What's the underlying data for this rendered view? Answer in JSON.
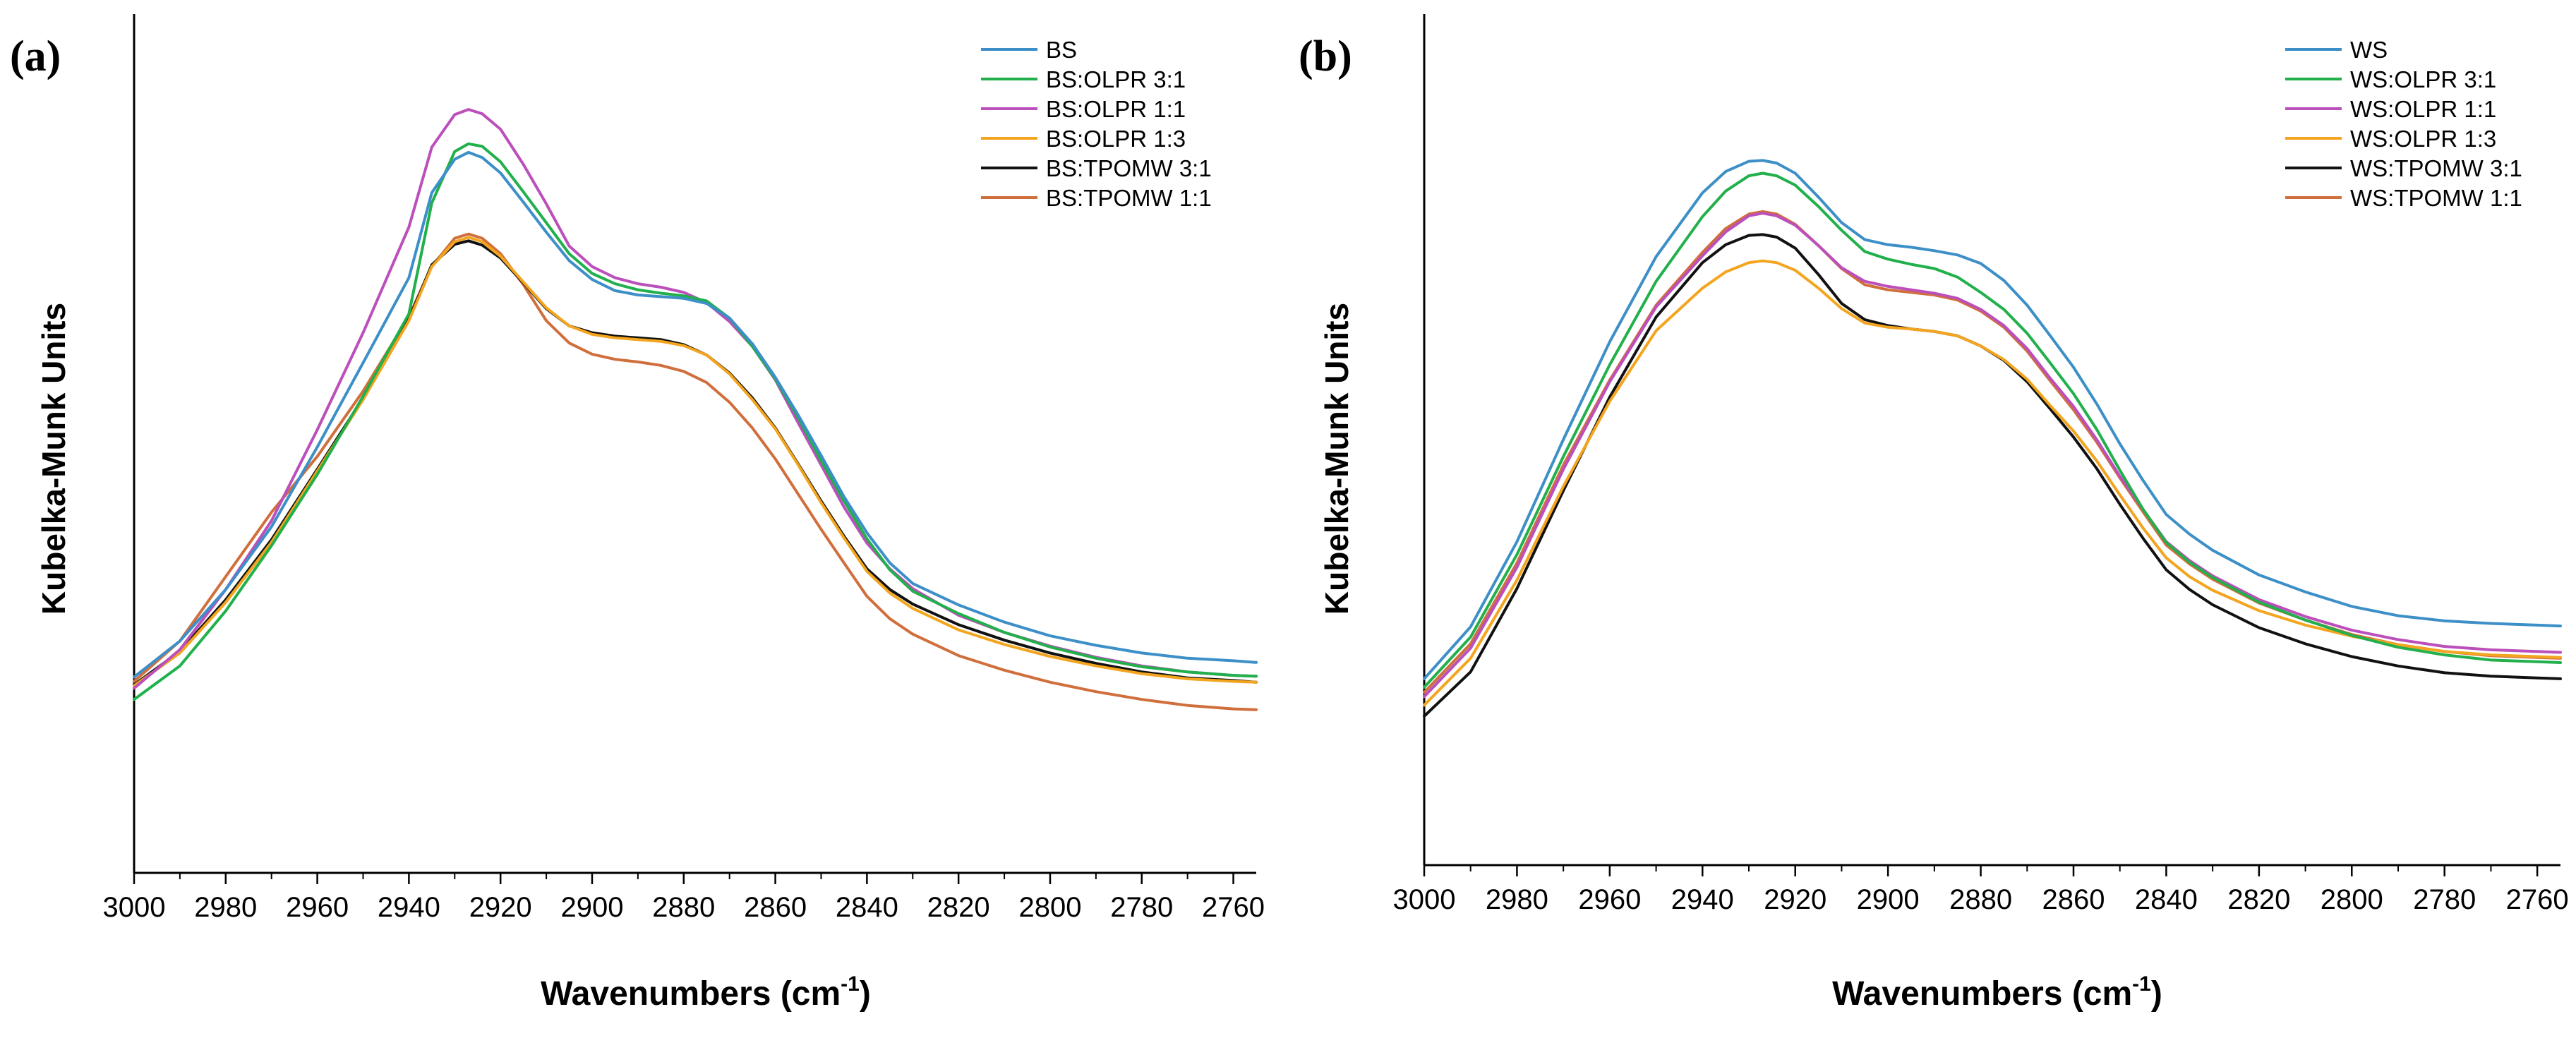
{
  "chart_data": [
    {
      "type": "line",
      "panel_label": "(a)",
      "xlabel": "Wavenumbers (cm",
      "xlabel_sup": "-1",
      "xlabel_tail": ")",
      "ylabel": "Kubelka-Munk Units",
      "xlim": [
        3000,
        2755
      ],
      "ylim": [
        0,
        100
      ],
      "x_ticks": [
        3000,
        2980,
        2960,
        2940,
        2920,
        2900,
        2880,
        2860,
        2840,
        2820,
        2800,
        2780,
        2760
      ],
      "y_ticks_labeled": false,
      "grid": false,
      "legend_position": "top-right",
      "x": [
        3000,
        2990,
        2980,
        2970,
        2960,
        2950,
        2940,
        2935,
        2930,
        2927,
        2924,
        2920,
        2915,
        2910,
        2905,
        2900,
        2895,
        2890,
        2885,
        2880,
        2875,
        2870,
        2865,
        2860,
        2855,
        2850,
        2845,
        2840,
        2835,
        2830,
        2820,
        2810,
        2800,
        2790,
        2780,
        2770,
        2760,
        2755
      ],
      "series": [
        {
          "name": "BS",
          "color": "#3d8fc8",
          "values": [
            22.8,
            27.0,
            33.0,
            40.3,
            49.6,
            59.4,
            69.3,
            79.2,
            83.1,
            83.9,
            83.3,
            81.5,
            78.1,
            74.6,
            71.3,
            69.1,
            67.8,
            67.3,
            67.1,
            66.9,
            66.3,
            64.6,
            61.6,
            57.7,
            53.3,
            48.6,
            43.8,
            39.6,
            36.1,
            33.7,
            31.2,
            29.2,
            27.6,
            26.5,
            25.6,
            25.0,
            24.7,
            24.5
          ]
        },
        {
          "name": "BS:OLPR 3:1",
          "color": "#21b04b",
          "values": [
            20.2,
            24.1,
            30.5,
            38.1,
            46.4,
            55.5,
            65.1,
            78.0,
            84.0,
            84.9,
            84.6,
            82.8,
            79.3,
            75.7,
            72.1,
            69.8,
            68.6,
            67.9,
            67.5,
            67.2,
            66.6,
            64.6,
            61.3,
            57.5,
            53.0,
            48.0,
            43.3,
            38.9,
            35.3,
            32.8,
            30.2,
            28.0,
            26.3,
            25.0,
            24.0,
            23.4,
            23.0,
            22.9
          ]
        },
        {
          "name": "BS:OLPR 1:1",
          "color": "#bb4fbb",
          "values": [
            21.5,
            26.0,
            33.0,
            41.0,
            51.6,
            62.9,
            75.2,
            84.5,
            88.3,
            88.9,
            88.4,
            86.6,
            82.5,
            77.9,
            73.0,
            70.6,
            69.3,
            68.6,
            68.2,
            67.6,
            66.4,
            64.2,
            61.3,
            57.4,
            52.4,
            47.5,
            42.6,
            38.4,
            35.4,
            33.1,
            30.0,
            28.0,
            26.4,
            25.1,
            24.1,
            23.4,
            23.0,
            22.9
          ]
        },
        {
          "name": "BS:OLPR 1:3",
          "color": "#f3a51f",
          "values": [
            21.8,
            25.6,
            31.5,
            38.5,
            46.8,
            55.1,
            64.3,
            70.6,
            73.5,
            74.0,
            73.5,
            71.8,
            68.8,
            65.8,
            63.7,
            62.7,
            62.3,
            62.1,
            61.9,
            61.4,
            60.3,
            58.1,
            55.1,
            51.7,
            47.5,
            43.1,
            39.0,
            35.1,
            32.6,
            30.8,
            28.3,
            26.6,
            25.2,
            24.1,
            23.2,
            22.6,
            22.3,
            22.2
          ]
        },
        {
          "name": "BS:TPOMW 3:1",
          "color": "#111111",
          "values": [
            21.9,
            25.8,
            31.8,
            38.8,
            47.0,
            55.3,
            64.5,
            70.8,
            73.2,
            73.6,
            73.1,
            71.6,
            68.7,
            65.7,
            63.7,
            62.9,
            62.5,
            62.3,
            62.1,
            61.5,
            60.3,
            58.2,
            55.3,
            51.8,
            47.6,
            43.3,
            39.2,
            35.4,
            33.0,
            31.3,
            28.9,
            27.1,
            25.6,
            24.4,
            23.4,
            22.7,
            22.4,
            22.2
          ]
        },
        {
          "name": "BS:TPOMW 1:1",
          "color": "#d06f3c",
          "values": [
            22.3,
            27.0,
            34.5,
            42.0,
            48.5,
            56.1,
            64.8,
            70.6,
            73.9,
            74.4,
            73.9,
            72.1,
            68.5,
            64.3,
            61.7,
            60.4,
            59.8,
            59.5,
            59.1,
            58.4,
            57.1,
            54.8,
            51.8,
            48.2,
            44.1,
            40.0,
            36.1,
            32.2,
            29.6,
            27.8,
            25.3,
            23.6,
            22.2,
            21.1,
            20.2,
            19.5,
            19.1,
            19.0
          ]
        }
      ]
    },
    {
      "type": "line",
      "panel_label": "(b)",
      "xlabel": "Wavenumbers (cm",
      "xlabel_sup": "-1",
      "xlabel_tail": ")",
      "ylabel": "Kubelka-Munk Units",
      "xlim": [
        3000,
        2755
      ],
      "ylim": [
        0,
        100
      ],
      "x_ticks": [
        3000,
        2980,
        2960,
        2940,
        2920,
        2900,
        2880,
        2860,
        2840,
        2820,
        2800,
        2780,
        2760
      ],
      "y_ticks_labeled": false,
      "grid": false,
      "legend_position": "top-right",
      "x": [
        3000,
        2990,
        2980,
        2970,
        2960,
        2950,
        2940,
        2935,
        2930,
        2927,
        2924,
        2920,
        2915,
        2910,
        2905,
        2900,
        2895,
        2890,
        2885,
        2880,
        2875,
        2870,
        2865,
        2860,
        2855,
        2850,
        2845,
        2840,
        2835,
        2830,
        2820,
        2810,
        2800,
        2790,
        2780,
        2770,
        2760,
        2755
      ],
      "series": [
        {
          "name": "WS",
          "color": "#3d8fc8",
          "values": [
            21.9,
            28.0,
            38.0,
            50.0,
            61.5,
            71.5,
            79.0,
            81.5,
            82.7,
            82.8,
            82.5,
            81.3,
            78.5,
            75.5,
            73.5,
            72.9,
            72.6,
            72.2,
            71.7,
            70.7,
            68.7,
            65.8,
            62.2,
            58.5,
            54.2,
            49.5,
            45.2,
            41.2,
            38.9,
            37.0,
            34.1,
            32.1,
            30.4,
            29.3,
            28.7,
            28.4,
            28.2,
            28.1
          ]
        },
        {
          "name": "WS:OLPR 3:1",
          "color": "#21b04b",
          "values": [
            20.9,
            26.8,
            36.5,
            48.0,
            58.8,
            68.6,
            76.2,
            79.2,
            81.0,
            81.3,
            81.0,
            79.9,
            77.4,
            74.6,
            72.1,
            71.2,
            70.6,
            70.1,
            69.1,
            67.3,
            65.3,
            62.5,
            59.0,
            55.4,
            51.2,
            46.4,
            41.8,
            37.9,
            35.6,
            33.8,
            30.9,
            28.8,
            27.0,
            25.6,
            24.7,
            24.1,
            23.9,
            23.8
          ]
        },
        {
          "name": "WS:OLPR 1:1",
          "color": "#bb4fbb",
          "values": [
            19.8,
            25.5,
            35.0,
            46.5,
            56.8,
            65.6,
            71.6,
            74.4,
            76.3,
            76.6,
            76.3,
            75.2,
            72.8,
            70.2,
            68.6,
            68.0,
            67.6,
            67.2,
            66.6,
            65.3,
            63.4,
            60.7,
            57.2,
            53.9,
            50.0,
            45.7,
            41.8,
            38.0,
            35.8,
            34.0,
            31.2,
            29.2,
            27.6,
            26.5,
            25.7,
            25.3,
            25.1,
            25.0
          ]
        },
        {
          "name": "WS:OLPR 1:3",
          "color": "#f3a51f",
          "values": [
            18.8,
            24.3,
            33.5,
            44.5,
            54.5,
            62.8,
            67.8,
            69.7,
            70.8,
            71.0,
            70.8,
            69.9,
            67.8,
            65.4,
            63.7,
            63.2,
            63.0,
            62.7,
            62.2,
            61.0,
            59.4,
            57.1,
            54.0,
            51.0,
            47.5,
            43.5,
            39.6,
            36.1,
            33.9,
            32.3,
            29.9,
            28.2,
            26.9,
            25.9,
            25.1,
            24.7,
            24.5,
            24.4
          ]
        },
        {
          "name": "WS:TPOMW 3:1",
          "color": "#111111",
          "values": [
            17.5,
            22.7,
            32.5,
            44.0,
            55.0,
            64.4,
            70.8,
            72.9,
            74.0,
            74.1,
            73.8,
            72.5,
            69.4,
            66.0,
            64.1,
            63.4,
            63.0,
            62.7,
            62.2,
            61.0,
            59.3,
            56.8,
            53.6,
            50.3,
            46.6,
            42.4,
            38.4,
            34.7,
            32.4,
            30.6,
            27.9,
            26.0,
            24.5,
            23.4,
            22.6,
            22.2,
            22.0,
            21.9
          ]
        },
        {
          "name": "WS:TPOMW 1:1",
          "color": "#d06f3c",
          "values": [
            20.3,
            26.0,
            35.5,
            47.0,
            57.0,
            65.8,
            72.0,
            74.8,
            76.5,
            76.8,
            76.5,
            75.3,
            72.8,
            70.1,
            68.2,
            67.6,
            67.3,
            67.0,
            66.4,
            65.1,
            63.2,
            60.4,
            56.9,
            53.5,
            49.7,
            45.5,
            41.5,
            37.6,
            35.4,
            33.6,
            30.8,
            28.8,
            27.1,
            25.9,
            25.1,
            24.6,
            24.4,
            24.3
          ]
        }
      ]
    }
  ]
}
